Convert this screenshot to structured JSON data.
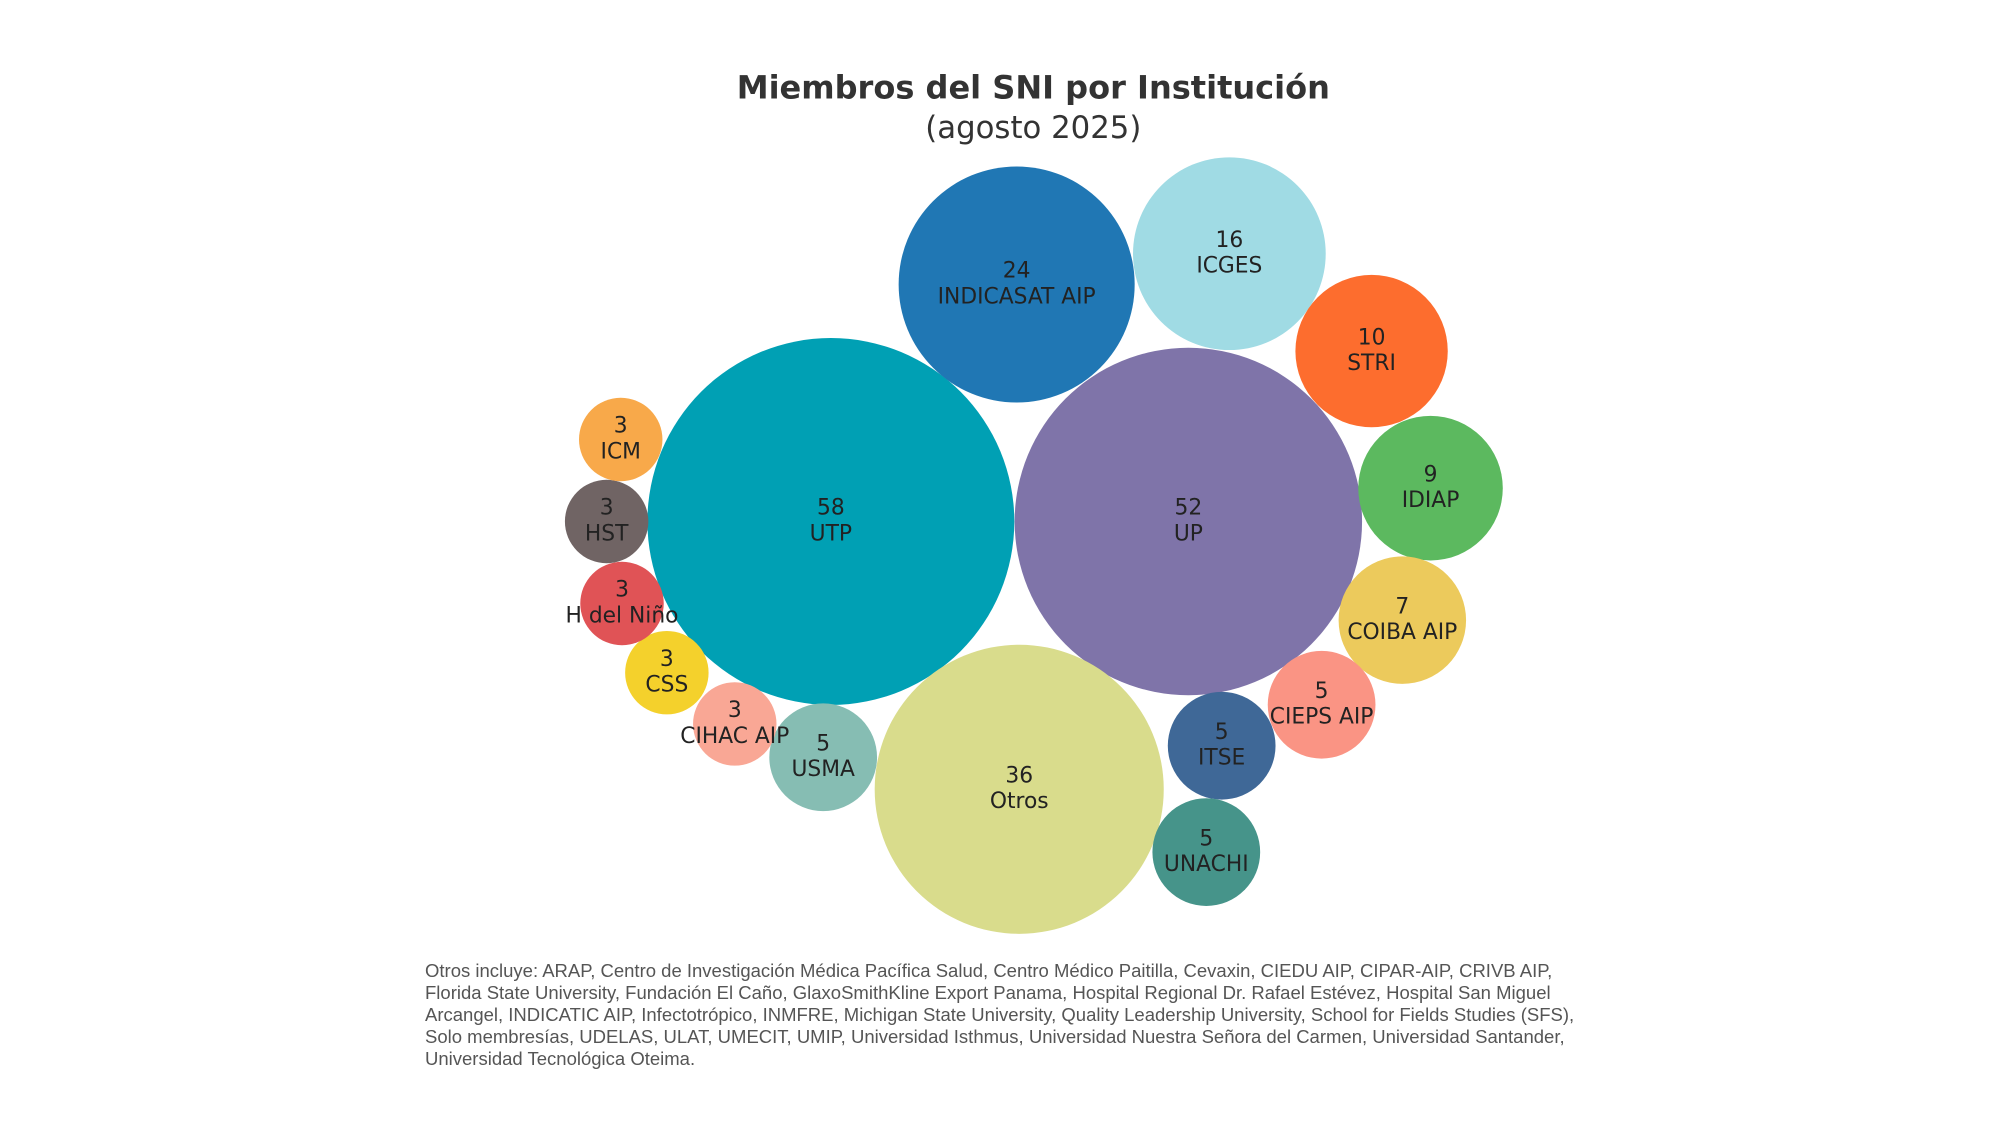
{
  "chart_data": {
    "type": "bubble",
    "title": "Miembros del SNI por Institución",
    "subtitle": "(agosto 2025)",
    "categories": [
      "UTP",
      "UP",
      "Otros",
      "INDICASAT AIP",
      "ICGES",
      "STRI",
      "IDIAP",
      "COIBA AIP",
      "CIEPS AIP",
      "ITSE",
      "UNACHI",
      "USMA",
      "CIHAC AIP",
      "CSS",
      "H del Niño",
      "HST",
      "ICM"
    ],
    "values": [
      58,
      52,
      36,
      24,
      16,
      10,
      9,
      7,
      5,
      5,
      5,
      5,
      3,
      3,
      3,
      3,
      3
    ],
    "colors": [
      "#00a0b4",
      "#7f74a9",
      "#d9dc8c",
      "#2077b4",
      "#a0dbe4",
      "#fd6d2e",
      "#5cb95f",
      "#ecca5c",
      "#fa9484",
      "#3f6897",
      "#46948a",
      "#86bdb3",
      "#f9a795",
      "#f4d12c",
      "#e05356",
      "#706464",
      "#f8a94a"
    ],
    "note": "Otros incluye: ARAP, Centro de Investigación Médica Pacífica Salud, Centro Médico Paitilla, Cevaxin, CIEDU AIP, CIPAR-AIP, CRIVB AIP, Florida State University, Fundación El Caño, GlaxoSmithKline Export Panama, Hospital Regional Dr. Rafael Estévez, Hospital San Miguel Arcangel, INDICATIC AIP, Infectotrópico, INMFRE, Michigan State University, Quality Leadership University, School for Fields Studies (SFS), Solo membresías, UDELAS, ULAT, UMECIT, UMIP, Universidad Isthmus, Universidad Nuestra Señora del Carmen, Universidad Santander, Universidad Tecnológica Oteima."
  }
}
